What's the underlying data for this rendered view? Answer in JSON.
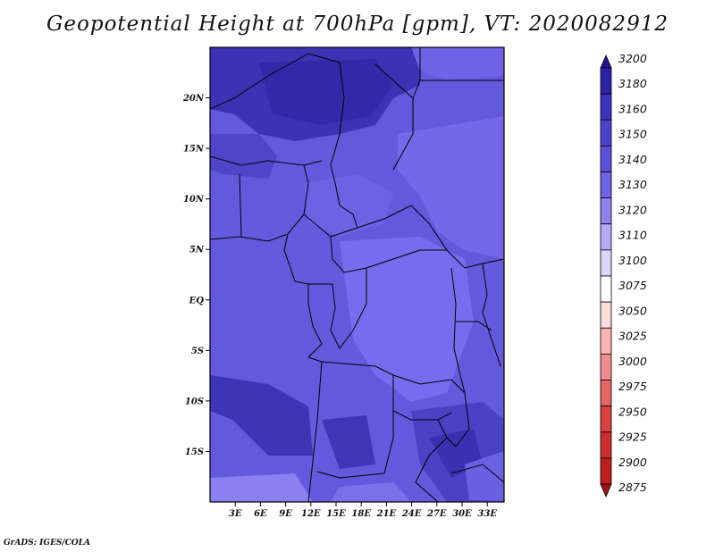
{
  "title": "Geopotential Height at 700hPa [gpm], VT: 2020082912",
  "footer": "GrADS: IGES/COLA",
  "map": {
    "lat_ticks": [
      {
        "lat": 20,
        "label": "20N"
      },
      {
        "lat": 15,
        "label": "15N"
      },
      {
        "lat": 10,
        "label": "10N"
      },
      {
        "lat": 5,
        "label": "5N"
      },
      {
        "lat": 0,
        "label": "EQ"
      },
      {
        "lat": -5,
        "label": "5S"
      },
      {
        "lat": -10,
        "label": "10S"
      },
      {
        "lat": -15,
        "label": "15S"
      }
    ],
    "lon_ticks": [
      {
        "lon": 3,
        "label": "3E"
      },
      {
        "lon": 6,
        "label": "6E"
      },
      {
        "lon": 9,
        "label": "9E"
      },
      {
        "lon": 12,
        "label": "12E"
      },
      {
        "lon": 15,
        "label": "15E"
      },
      {
        "lon": 18,
        "label": "18E"
      },
      {
        "lon": 21,
        "label": "21E"
      },
      {
        "lon": 24,
        "label": "24E"
      },
      {
        "lon": 27,
        "label": "27E"
      },
      {
        "lon": 30,
        "label": "30E"
      },
      {
        "lon": 33,
        "label": "33E"
      }
    ],
    "extent": {
      "lon_min": 0,
      "lon_max": 35,
      "lat_min": -20,
      "lat_max": 25
    }
  },
  "colorbar": {
    "labels": [
      "3200",
      "3180",
      "3160",
      "3150",
      "3140",
      "3130",
      "3120",
      "3110",
      "3100",
      "3075",
      "3050",
      "3025",
      "3000",
      "2975",
      "2950",
      "2925",
      "2900",
      "2875"
    ],
    "colors": [
      "#1e1496",
      "#2d23a8",
      "#3c32be",
      "#4b41cd",
      "#5a50dc",
      "#6e64e6",
      "#8c82f0",
      "#b4aaf5",
      "#dcd7fa",
      "#ffffff",
      "#ffdcdc",
      "#fab4b4",
      "#f08c8c",
      "#e66464",
      "#dc4141",
      "#cd2d2d",
      "#be1e1e",
      "#a01414"
    ]
  }
}
